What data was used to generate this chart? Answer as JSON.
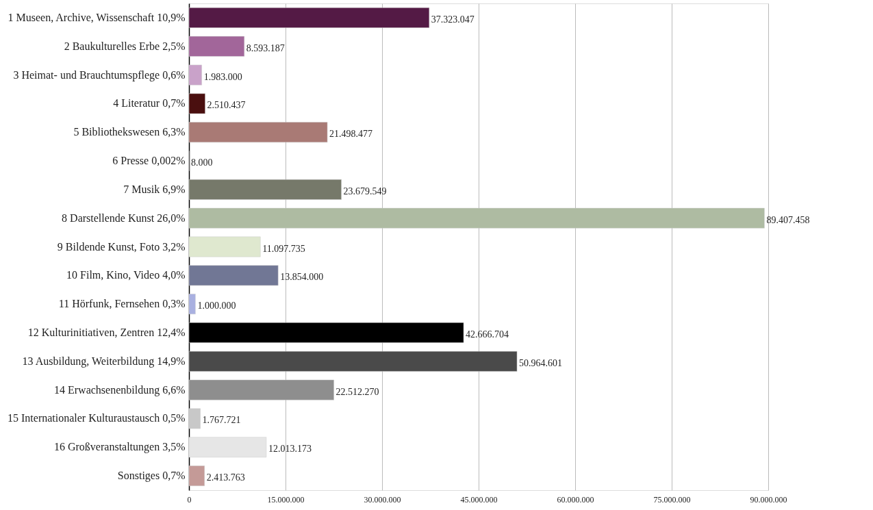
{
  "chart_data": {
    "type": "bar",
    "orientation": "horizontal",
    "categories": [
      "1 Museen, Archive, Wissenschaft  10,9%",
      "2 Baukulturelles Erbe  2,5%",
      "3 Heimat- und Brauchtumspflege  0,6%",
      "4 Literatur  0,7%",
      "5 Bibliothekswesen  6,3%",
      "6 Presse  0,002%",
      "7 Musik  6,9%",
      "8 Darstellende Kunst  26,0%",
      "9 Bildende Kunst, Foto  3,2%",
      "10 Film, Kino, Video  4,0%",
      "11 Hörfunk, Fernsehen  0,3%",
      "12 Kulturinitiativen, Zentren  12,4%",
      "13 Ausbildung, Weiterbildung  14,9%",
      "14 Erwachsenenbildung  6,6%",
      "15 Internationaler Kulturaustausch  0,5%",
      "16 Großveranstaltungen  3,5%",
      "Sonstiges  0,7%"
    ],
    "values": [
      37323047,
      8593187,
      1983000,
      2510437,
      21498477,
      8000,
      23679549,
      89407458,
      11097735,
      13854000,
      1000000,
      42666704,
      50964601,
      22512270,
      1767721,
      12013173,
      2413763
    ],
    "value_labels": [
      "37.323.047",
      "8.593.187",
      "1.983.000",
      "2.510.437",
      "21.498.477",
      "8.000",
      "23.679.549",
      "89.407.458",
      "11.097.735",
      "13.854.000",
      "1.000.000",
      "42.666.704",
      "50.964.601",
      "22.512.270",
      "1.767.721",
      "12.013.173",
      "2.413.763"
    ],
    "colors": [
      "#541a45",
      "#a2669a",
      "#c9a2c9",
      "#4a0f0f",
      "#a97a75",
      "#a97a75",
      "#76796a",
      "#aebba2",
      "#dfe8cf",
      "#717795",
      "#a9b0e0",
      "#000000",
      "#4a4a4a",
      "#8e8e8e",
      "#c8c8c8",
      "#e6e6e6",
      "#c49a97"
    ],
    "xlim": [
      0,
      90000000
    ],
    "xticks": [
      0,
      {
        "value": 15000000,
        "label": "15.000.000"
      },
      {
        "value": 30000000,
        "label": "30.000.000"
      },
      {
        "value": 45000000,
        "label": "45.000.000"
      },
      {
        "value": 60000000,
        "label": "60.000.000"
      },
      {
        "value": 75000000,
        "label": "75.000.000"
      },
      {
        "value": 90000000,
        "label": "90.000.000"
      }
    ],
    "grid": "x"
  }
}
